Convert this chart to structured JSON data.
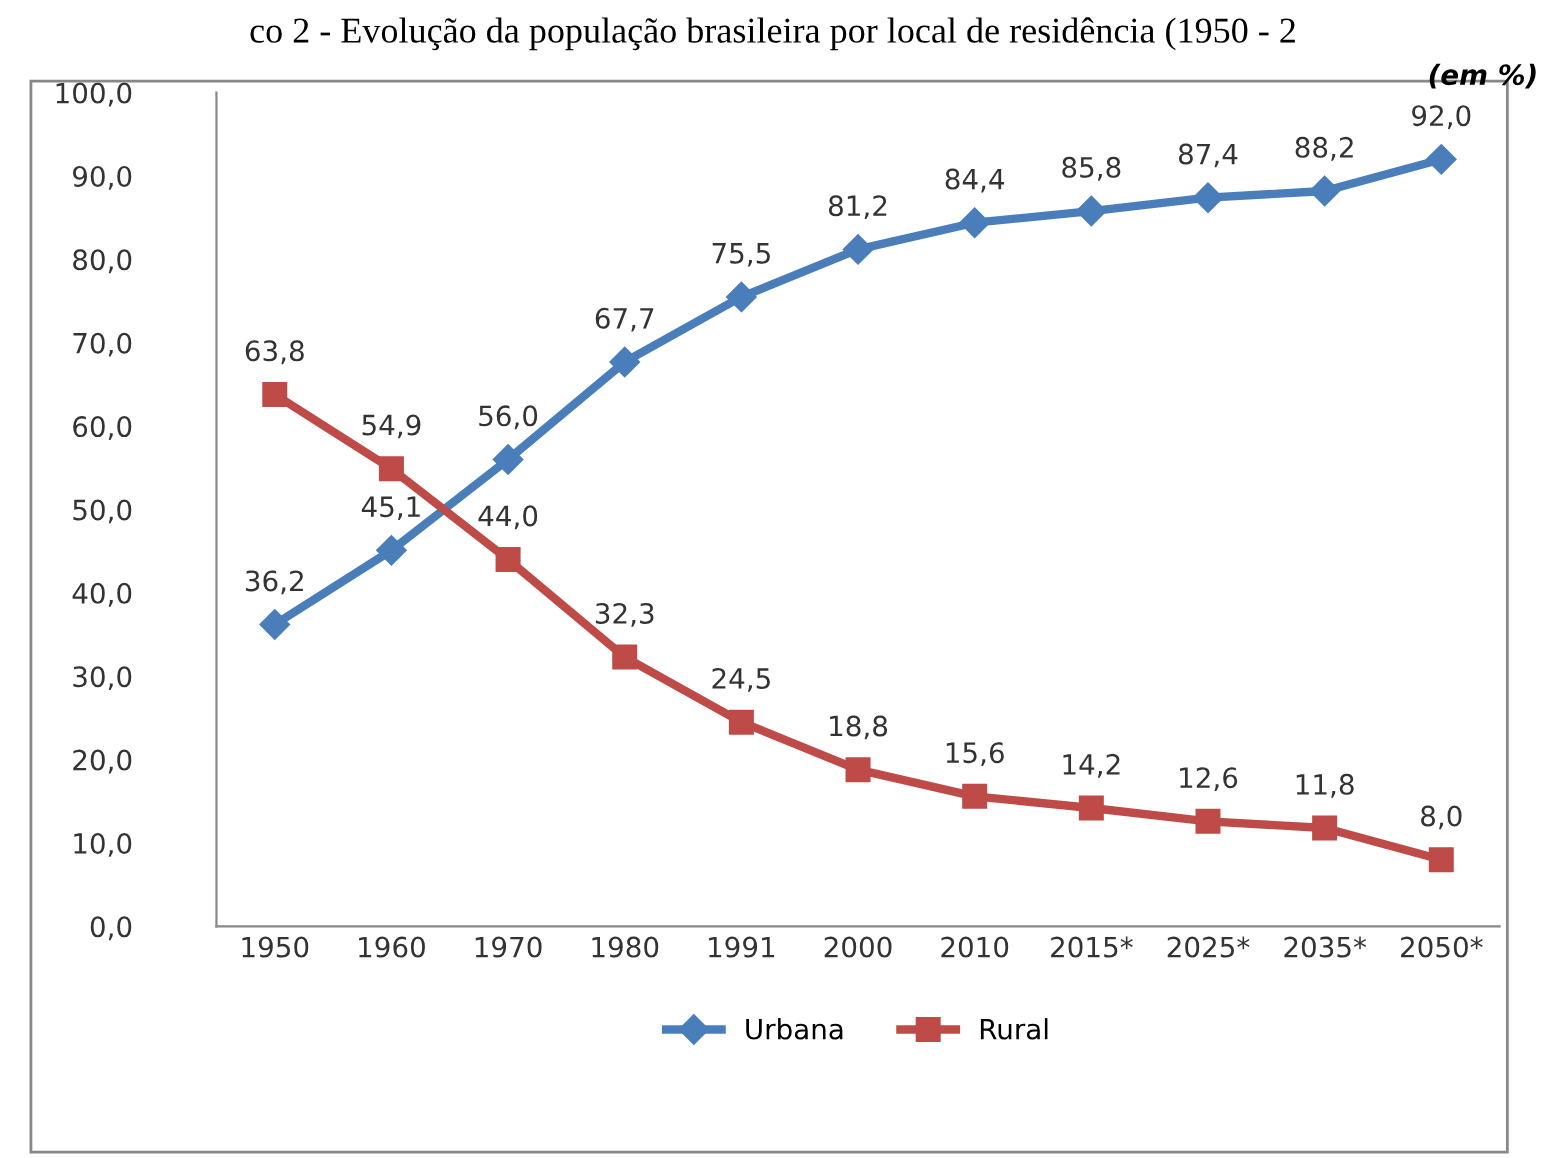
{
  "chart_data": {
    "type": "line",
    "title": "co 2 - Evolução da população brasileira por local de residência (1950 - 2",
    "annotations": [
      "(em %)"
    ],
    "categories": [
      "1950",
      "1960",
      "1970",
      "1980",
      "1991",
      "2000",
      "2010",
      "2015*",
      "2025*",
      "2035*",
      "2050*"
    ],
    "series": [
      {
        "name": "Urbana",
        "color": "#4a7ebb",
        "marker": "diamond",
        "values": [
          36.2,
          45.1,
          56.0,
          67.7,
          75.5,
          81.2,
          84.4,
          85.8,
          87.4,
          88.2,
          92.0
        ],
        "value_labels": [
          "36,2",
          "45,1",
          "56,0",
          "67,7",
          "75,5",
          "81,2",
          "84,4",
          "85,8",
          "87,4",
          "88,2",
          "92,0"
        ]
      },
      {
        "name": "Rural",
        "color": "#be4b48",
        "marker": "square",
        "values": [
          63.8,
          54.9,
          44.0,
          32.3,
          24.5,
          18.8,
          15.6,
          14.2,
          12.6,
          11.8,
          8.0
        ],
        "value_labels": [
          "63,8",
          "54,9",
          "44,0",
          "32,3",
          "24,5",
          "18,8",
          "15,6",
          "14,2",
          "12,6",
          "11,8",
          "8,0"
        ]
      }
    ],
    "ylim": [
      0,
      100
    ],
    "yticks": [
      {
        "value": 0,
        "label": "0,0"
      },
      {
        "value": 10,
        "label": "10,0"
      },
      {
        "value": 20,
        "label": "20,0"
      },
      {
        "value": 30,
        "label": "30,0"
      },
      {
        "value": 40,
        "label": "40,0"
      },
      {
        "value": 50,
        "label": "50,0"
      },
      {
        "value": 60,
        "label": "60,0"
      },
      {
        "value": 70,
        "label": "70,0"
      },
      {
        "value": 80,
        "label": "80,0"
      },
      {
        "value": 90,
        "label": "90,0"
      },
      {
        "value": 100,
        "label": "100,0"
      }
    ],
    "grid": false,
    "legend": "bottom",
    "line_style": "solid"
  }
}
